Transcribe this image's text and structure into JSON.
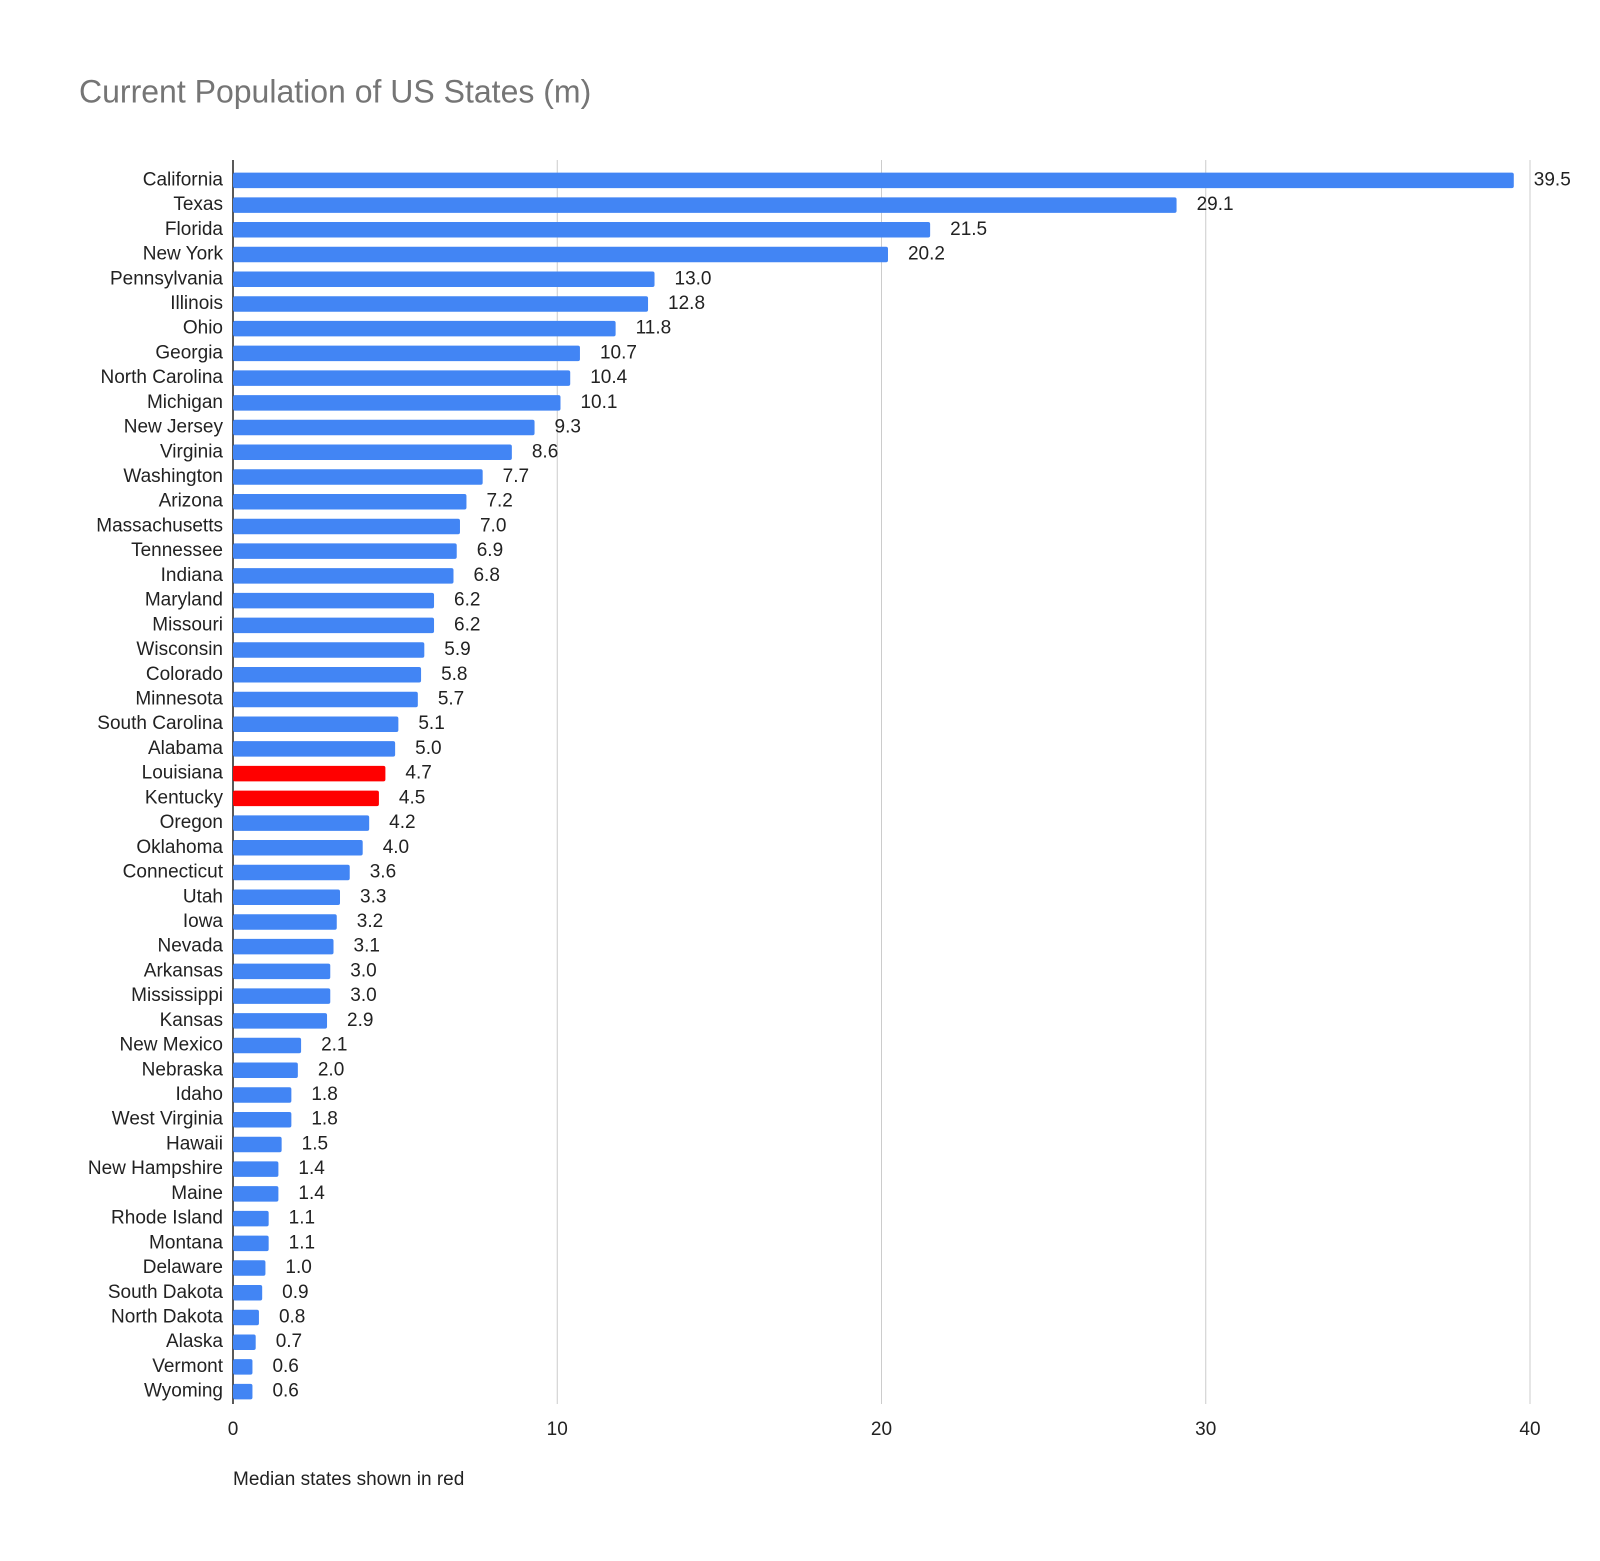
{
  "chart_data": {
    "type": "bar",
    "orientation": "horizontal",
    "title": "Current Population of US States (m)",
    "note": "Median states shown in red",
    "categories": [
      "California",
      "Texas",
      "Florida",
      "New York",
      "Pennsylvania",
      "Illinois",
      "Ohio",
      "Georgia",
      "North Carolina",
      "Michigan",
      "New Jersey",
      "Virginia",
      "Washington",
      "Arizona",
      "Massachusetts",
      "Tennessee",
      "Indiana",
      "Maryland",
      "Missouri",
      "Wisconsin",
      "Colorado",
      "Minnesota",
      "South Carolina",
      "Alabama",
      "Louisiana",
      "Kentucky",
      "Oregon",
      "Oklahoma",
      "Connecticut",
      "Utah",
      "Iowa",
      "Nevada",
      "Arkansas",
      "Mississippi",
      "Kansas",
      "New Mexico",
      "Nebraska",
      "Idaho",
      "West Virginia",
      "Hawaii",
      "New Hampshire",
      "Maine",
      "Rhode Island",
      "Montana",
      "Delaware",
      "South Dakota",
      "North Dakota",
      "Alaska",
      "Vermont",
      "Wyoming"
    ],
    "values": [
      39.5,
      29.1,
      21.5,
      20.2,
      13.0,
      12.8,
      11.8,
      10.7,
      10.4,
      10.1,
      9.3,
      8.6,
      7.7,
      7.2,
      7.0,
      6.9,
      6.8,
      6.2,
      6.2,
      5.9,
      5.8,
      5.7,
      5.1,
      5.0,
      4.7,
      4.5,
      4.2,
      4.0,
      3.6,
      3.3,
      3.2,
      3.1,
      3.0,
      3.0,
      2.9,
      2.1,
      2.0,
      1.8,
      1.8,
      1.5,
      1.4,
      1.4,
      1.1,
      1.1,
      1.0,
      0.9,
      0.8,
      0.7,
      0.6,
      0.6
    ],
    "value_labels": [
      "39.5",
      "29.1",
      "21.5",
      "20.2",
      "13.0",
      "12.8",
      "11.8",
      "10.7",
      "10.4",
      "10.1",
      "9.3",
      "8.6",
      "7.7",
      "7.2",
      "7.0",
      "6.9",
      "6.8",
      "6.2",
      "6.2",
      "5.9",
      "5.8",
      "5.7",
      "5.1",
      "5.0",
      "4.7",
      "4.5",
      "4.2",
      "4.0",
      "3.6",
      "3.3",
      "3.2",
      "3.1",
      "3.0",
      "3.0",
      "2.9",
      "2.1",
      "2.0",
      "1.8",
      "1.8",
      "1.5",
      "1.4",
      "1.4",
      "1.1",
      "1.1",
      "1.0",
      "0.9",
      "0.8",
      "0.7",
      "0.6",
      "0.6"
    ],
    "colors": [
      "#4285f4",
      "#4285f4",
      "#4285f4",
      "#4285f4",
      "#4285f4",
      "#4285f4",
      "#4285f4",
      "#4285f4",
      "#4285f4",
      "#4285f4",
      "#4285f4",
      "#4285f4",
      "#4285f4",
      "#4285f4",
      "#4285f4",
      "#4285f4",
      "#4285f4",
      "#4285f4",
      "#4285f4",
      "#4285f4",
      "#4285f4",
      "#4285f4",
      "#4285f4",
      "#4285f4",
      "#ff0000",
      "#ff0000",
      "#4285f4",
      "#4285f4",
      "#4285f4",
      "#4285f4",
      "#4285f4",
      "#4285f4",
      "#4285f4",
      "#4285f4",
      "#4285f4",
      "#4285f4",
      "#4285f4",
      "#4285f4",
      "#4285f4",
      "#4285f4",
      "#4285f4",
      "#4285f4",
      "#4285f4",
      "#4285f4",
      "#4285f4",
      "#4285f4",
      "#4285f4",
      "#4285f4",
      "#4285f4",
      "#4285f4"
    ],
    "xlim": [
      0,
      40
    ],
    "xticks": [
      0,
      10,
      20,
      30,
      40
    ],
    "grid": true
  }
}
